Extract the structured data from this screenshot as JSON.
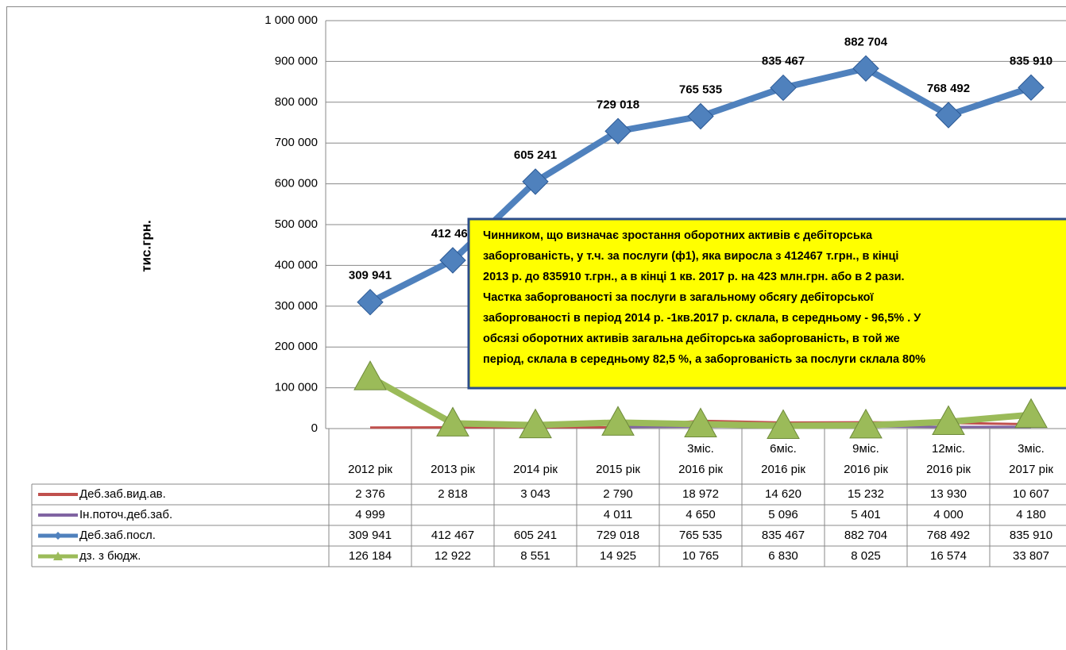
{
  "chart_data": {
    "type": "line",
    "y_label": "тис.грн.",
    "categories": [
      [
        "2012 рік"
      ],
      [
        "2013 рік"
      ],
      [
        "2014 рік"
      ],
      [
        "2015 рік"
      ],
      [
        "3міс.",
        "2016 рік"
      ],
      [
        "6міс.",
        "2016 рік"
      ],
      [
        "9міс.",
        "2016 рік"
      ],
      [
        "12міс.",
        "2016 рік"
      ],
      [
        "3міс.",
        "2017 рік"
      ]
    ],
    "ylim": [
      0,
      1000000
    ],
    "yticks": [
      0,
      {
        "value": 100000,
        "label": "100 000"
      },
      {
        "value": 200000,
        "label": "200 000"
      },
      {
        "value": 300000,
        "label": "300 000"
      },
      {
        "value": 400000,
        "label": "400 000"
      },
      {
        "value": 500000,
        "label": "500 000"
      },
      {
        "value": 600000,
        "label": "600 000"
      },
      {
        "value": 700000,
        "label": "700 000"
      },
      {
        "value": 800000,
        "label": "800 000"
      },
      {
        "value": 900000,
        "label": "900 000"
      },
      {
        "value": 1000000,
        "label": "1 000 000"
      }
    ],
    "grid": true,
    "series": [
      {
        "name": "Деб.заб.вид.ав.",
        "color": "#c0504d",
        "marker": "none",
        "width": 3,
        "values": [
          2376,
          2818,
          3043,
          2790,
          18972,
          14620,
          15232,
          13930,
          10607
        ],
        "value_labels": [
          "2 376",
          "2 818",
          "3 043",
          "2 790",
          "18 972",
          "14 620",
          "15 232",
          "13 930",
          "10 607"
        ]
      },
      {
        "name": "Ін.поточ.деб.заб.",
        "color": "#8064a2",
        "marker": "none",
        "width": 3,
        "values": [
          4999,
          null,
          null,
          4011,
          4650,
          5096,
          5401,
          4000,
          4180
        ],
        "value_labels": [
          "4 999",
          null,
          null,
          "4 011",
          "4 650",
          "5 096",
          "5 401",
          "4 000",
          "4 180"
        ]
      },
      {
        "name": "Деб.заб.посл.",
        "color": "#4f81bd",
        "marker": "diamond",
        "width": 8,
        "data_labels": true,
        "values": [
          309941,
          412467,
          605241,
          729018,
          765535,
          835467,
          882704,
          768492,
          835910
        ],
        "value_labels": [
          "309 941",
          "412 467",
          "605 241",
          "729 018",
          "765 535",
          "835 467",
          "882 704",
          "768 492",
          "835 910"
        ]
      },
      {
        "name": "дз. з бюдж.",
        "color": "#9bbb59",
        "marker": "triangle",
        "width": 8,
        "values": [
          126184,
          12922,
          8551,
          14925,
          10765,
          6830,
          8025,
          16574,
          33807
        ],
        "value_labels": [
          "126 184",
          "12 922",
          "8 551",
          "14 925",
          "10 765",
          "6 830",
          "8 025",
          "16 574",
          "33 807"
        ]
      }
    ],
    "annotation": [
      "Чинником, що визначає зростання оборотних активів є  дебіторська",
      "заборгованість, у т.ч. за послуги (ф1), яка виросла з 412467 т.грн.,  в кінці",
      "2013 р. до 835910 т.грн., а в кінці 1 кв. 2017 р. на 423 млн.грн. або в 2 рази.",
      "Частка  заборгованості  за послуги в загальному обсягу дебіторської",
      "заборгованості в період 2014 р. -1кв.2017 р. склала, в середньому - 96,5% .  У",
      "обсязі  оборотних активів загальна дебіторська заборгованість, в той же",
      "період, склала в середньому 82,5 %, а заборгованість за послуги склала 80%"
    ]
  }
}
